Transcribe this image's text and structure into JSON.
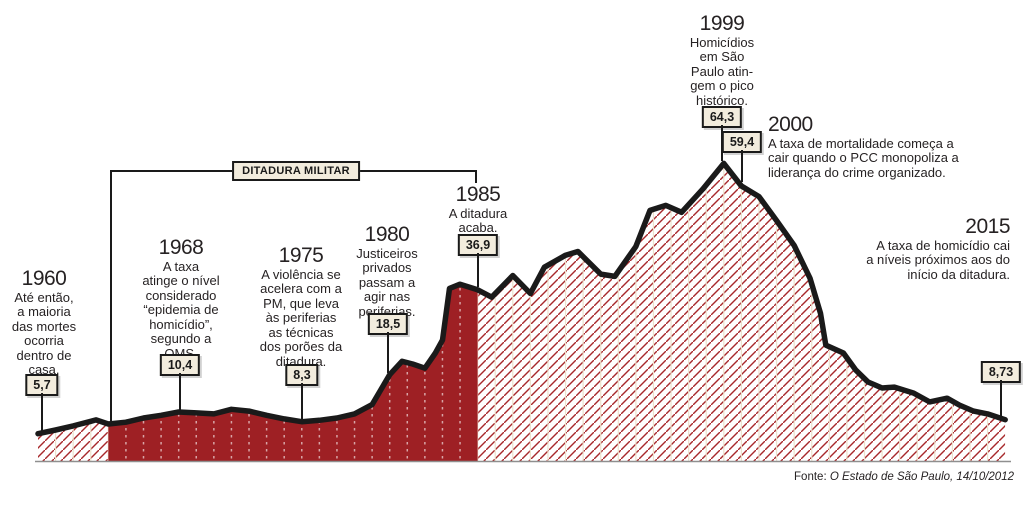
{
  "annotations": [
    {
      "year": "1960",
      "lines": [
        "Até então,",
        "a maioria",
        "das mortes",
        "ocorria",
        "dentro de",
        "casa."
      ],
      "value": "5,7"
    },
    {
      "year": "1968",
      "lines": [
        "A taxa",
        "atinge o nível",
        "considerado",
        "“epidemia de",
        "homicídio”,",
        "segundo a",
        "OMS."
      ],
      "value": "10,4"
    },
    {
      "year": "1975",
      "lines": [
        "A violência se",
        "acelera com a",
        "PM, que leva",
        "às periferias",
        "as técnicas",
        "dos porões da",
        "ditadura."
      ],
      "value": "8,3"
    },
    {
      "year": "1980",
      "lines": [
        "Justiceiros",
        "privados",
        "passam a",
        "agir nas",
        "periferias."
      ],
      "value": "18,5"
    },
    {
      "year": "1985",
      "lines": [
        "A ditadura",
        "acaba."
      ],
      "value": "36,9"
    },
    {
      "year": "1999",
      "lines": [
        "Homicídios",
        "em São",
        "Paulo atin-",
        "gem o pico",
        "histórico."
      ],
      "value": "64,3"
    },
    {
      "year": "2000",
      "lines": [
        "A taxa de mortalidade começa a",
        "cair quando o PCC monopoliza a",
        "liderança do crime organizado."
      ],
      "value": "59,4"
    },
    {
      "year": "2015",
      "lines": [
        "A taxa de homicídio cai",
        "a níveis próximos aos do",
        "início da ditadura."
      ],
      "value": "8,73"
    }
  ],
  "dictatorship_label": "DITADURA MILITAR",
  "source": {
    "prefix": "Fonte: ",
    "name": "O Estado de São Paulo",
    "suffix": ", 14/10/2012"
  },
  "colors": {
    "solid_fill": "#9e2024",
    "hatch_line": "#a8292c",
    "curve": "#1a1a1a",
    "badge_bg": "#f2ecdd",
    "baseline": "#8f8f8f",
    "year_gridline": "#ece1cc",
    "dashed_gridline": "rgba(255,255,255,0.6)"
  },
  "chart_data": {
    "type": "area",
    "xlim": [
      1960,
      2015
    ],
    "ylim": [
      0,
      70
    ],
    "grid": "vertical year lines",
    "highlight_period": {
      "start": 1964,
      "end": 1985,
      "label": "DITADURA MILITAR",
      "style": "solid red with dashed year lines; outside period is red diagonal hatching"
    },
    "labeled_points": [
      {
        "x": 1960,
        "y": 5.7,
        "label": "5,7"
      },
      {
        "x": 1968,
        "y": 10.4,
        "label": "10,4"
      },
      {
        "x": 1975,
        "y": 8.3,
        "label": "8,3"
      },
      {
        "x": 1980,
        "y": 18.5,
        "label": "18,5"
      },
      {
        "x": 1985,
        "y": 36.9,
        "label": "36,9"
      },
      {
        "x": 1999,
        "y": 64.3,
        "label": "64,3"
      },
      {
        "x": 2000,
        "y": 59.4,
        "label": "59,4"
      },
      {
        "x": 2015,
        "y": 8.73,
        "label": "8,73"
      }
    ],
    "points": [
      [
        1960,
        5.7
      ],
      [
        1961,
        6.5
      ],
      [
        1962,
        7.4
      ],
      [
        1963,
        8.4
      ],
      [
        1963.3,
        8.7
      ],
      [
        1964,
        7.8
      ],
      [
        1965,
        8.2
      ],
      [
        1966,
        9.1
      ],
      [
        1967,
        9.7
      ],
      [
        1968,
        10.4
      ],
      [
        1969,
        10.2
      ],
      [
        1970,
        10.0
      ],
      [
        1971,
        11.0
      ],
      [
        1972,
        10.6
      ],
      [
        1973,
        9.7
      ],
      [
        1974,
        8.9
      ],
      [
        1975,
        8.3
      ],
      [
        1976,
        8.6
      ],
      [
        1977,
        9.1
      ],
      [
        1978,
        10.0
      ],
      [
        1979,
        12.0
      ],
      [
        1980,
        18.5
      ],
      [
        1980.7,
        21.4
      ],
      [
        1981.3,
        20.8
      ],
      [
        1982,
        19.9
      ],
      [
        1982.6,
        23.2
      ],
      [
        1983,
        26.0
      ],
      [
        1983.4,
        37.2
      ],
      [
        1984,
        38.1
      ],
      [
        1985,
        36.9
      ],
      [
        1985.8,
        35.3
      ],
      [
        1987,
        40.0
      ],
      [
        1988,
        36.1
      ],
      [
        1988.8,
        41.8
      ],
      [
        1990,
        44.4
      ],
      [
        1990.7,
        45.2
      ],
      [
        1992,
        40.3
      ],
      [
        1992.8,
        39.8
      ],
      [
        1994,
        46.3
      ],
      [
        1994.8,
        54.1
      ],
      [
        1995.7,
        55.2
      ],
      [
        1996.6,
        53.7
      ],
      [
        1997.8,
        58.7
      ],
      [
        1999,
        64.3
      ],
      [
        2000,
        59.4
      ],
      [
        2001,
        57.1
      ],
      [
        2002,
        51.9
      ],
      [
        2003,
        46.5
      ],
      [
        2003.9,
        39.4
      ],
      [
        2004.5,
        31.8
      ],
      [
        2004.8,
        24.9
      ],
      [
        2005.8,
        23.2
      ],
      [
        2006.5,
        19.5
      ],
      [
        2007.2,
        16.9
      ],
      [
        2008,
        15.6
      ],
      [
        2008.7,
        15.8
      ],
      [
        2009.8,
        14.5
      ],
      [
        2010.7,
        12.6
      ],
      [
        2011.7,
        13.4
      ],
      [
        2012.4,
        11.9
      ],
      [
        2013.2,
        10.6
      ],
      [
        2014,
        10.0
      ],
      [
        2015,
        8.73
      ]
    ]
  }
}
